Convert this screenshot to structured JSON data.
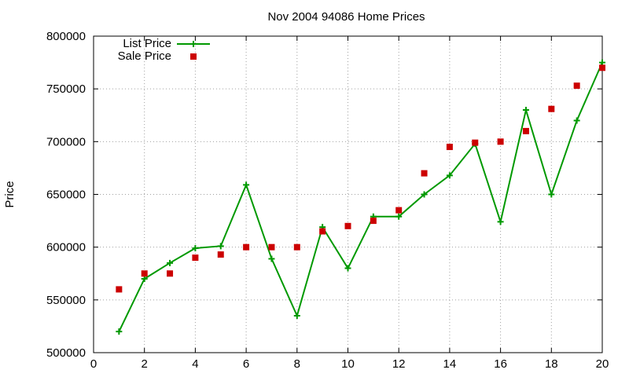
{
  "chart_data": {
    "type": "line",
    "title": "Nov 2004 94086 Home Prices",
    "xlabel": "",
    "ylabel": "Price",
    "xlim": [
      0,
      20
    ],
    "ylim": [
      500000,
      800000
    ],
    "x_ticks": [
      "0",
      "2",
      "4",
      "6",
      "8",
      "10",
      "12",
      "14",
      "16",
      "18",
      "20"
    ],
    "y_ticks": [
      "500000",
      "550000",
      "600000",
      "650000",
      "700000",
      "750000",
      "800000"
    ],
    "grid": true,
    "legend_position": "top-left",
    "x": [
      1,
      2,
      3,
      4,
      5,
      6,
      7,
      8,
      9,
      10,
      11,
      12,
      13,
      14,
      15,
      16,
      17,
      18,
      19,
      20
    ],
    "series": [
      {
        "name": "List Price",
        "style": "line with plus markers",
        "color": "#009900",
        "values": [
          520000,
          570000,
          585000,
          599000,
          601000,
          659000,
          589000,
          535000,
          619000,
          580000,
          629000,
          629000,
          650000,
          668000,
          698000,
          624000,
          730000,
          650000,
          720000,
          775000
        ]
      },
      {
        "name": "Sale Price",
        "style": "square markers",
        "color": "#cc0000",
        "values": [
          560000,
          575000,
          575000,
          590000,
          593000,
          600000,
          600000,
          600000,
          615000,
          620000,
          625000,
          635000,
          670000,
          695000,
          699000,
          700000,
          710000,
          731000,
          753000,
          770000
        ]
      }
    ]
  }
}
